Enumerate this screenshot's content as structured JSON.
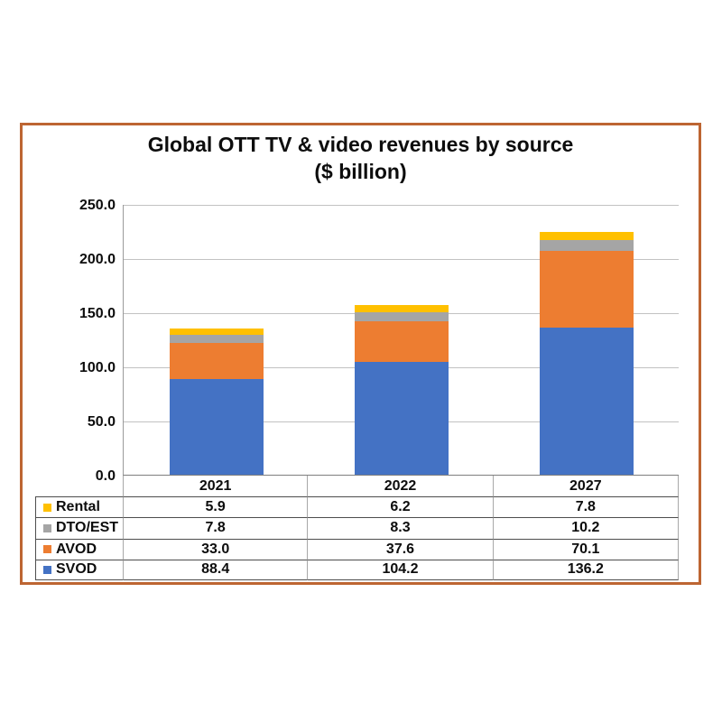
{
  "page": {
    "background": "#ffffff"
  },
  "frame": {
    "border_color": "#bd6532"
  },
  "chart": {
    "title_line1": "Global OTT TV & video revenues by source",
    "title_line2": "($ billion)"
  },
  "chart_data": {
    "type": "bar",
    "stacked": true,
    "title": "Global OTT TV & video revenues by source ($ billion)",
    "categories": [
      "2021",
      "2022",
      "2027"
    ],
    "series": [
      {
        "name": "Rental",
        "color": "#ffc000",
        "values": [
          5.9,
          6.2,
          7.8
        ]
      },
      {
        "name": "DTO/EST",
        "color": "#a5a5a5",
        "values": [
          7.8,
          8.3,
          10.2
        ]
      },
      {
        "name": "AVOD",
        "color": "#ed7d31",
        "values": [
          33.0,
          37.6,
          70.1
        ]
      },
      {
        "name": "SVOD",
        "color": "#4472c4",
        "values": [
          88.4,
          104.2,
          136.2
        ]
      }
    ],
    "ylim": [
      0,
      250
    ],
    "ytick_interval": 50,
    "ytick_labels": [
      "0.0",
      "50.0",
      "100.0",
      "150.0",
      "200.0",
      "250.0"
    ],
    "grid": true,
    "legend_position": "data-table-left",
    "value_format": "one-decimal",
    "totals": [
      135.1,
      156.3,
      224.3
    ]
  }
}
